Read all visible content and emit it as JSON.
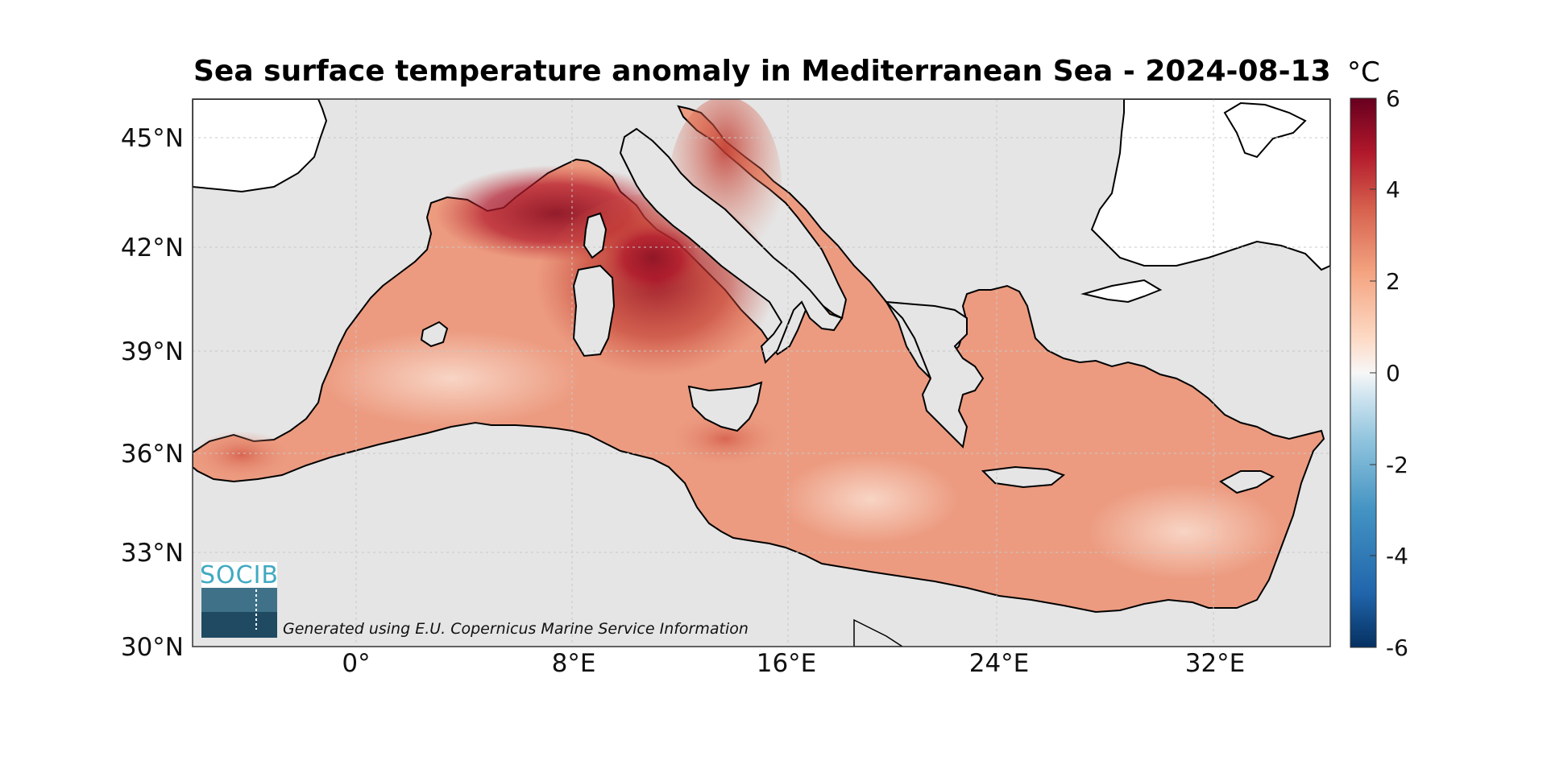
{
  "title": "Sea surface temperature anomaly in Mediterranean Sea - 2024-08-13",
  "colorbar": {
    "unit": "°C",
    "ticks": [
      "6",
      "4",
      "2",
      "0",
      "-2",
      "-4",
      "-6"
    ],
    "range": [
      -6,
      6
    ],
    "colors": [
      "#053061",
      "#2166ac",
      "#4393c3",
      "#92c5de",
      "#d1e5f0",
      "#f7f7f7",
      "#fddbc7",
      "#f4a582",
      "#d6604d",
      "#b2182b",
      "#67001f"
    ]
  },
  "axes": {
    "lat_labels": [
      "45°N",
      "42°N",
      "39°N",
      "36°N",
      "33°N",
      "30°N"
    ],
    "lon_labels": [
      "0°",
      "8°E",
      "16°E",
      "24°E",
      "32°E"
    ],
    "lon_range": [
      -6,
      36.3
    ],
    "lat_range": [
      30,
      46.2
    ],
    "grid": true
  },
  "colors": {
    "ocean_background": "#e5e5e5",
    "land": "#ffffff",
    "coastline": "#000000"
  },
  "logo": {
    "text": "SOCIB"
  },
  "credit": "Generated using E.U. Copernicus Marine Service Information"
}
